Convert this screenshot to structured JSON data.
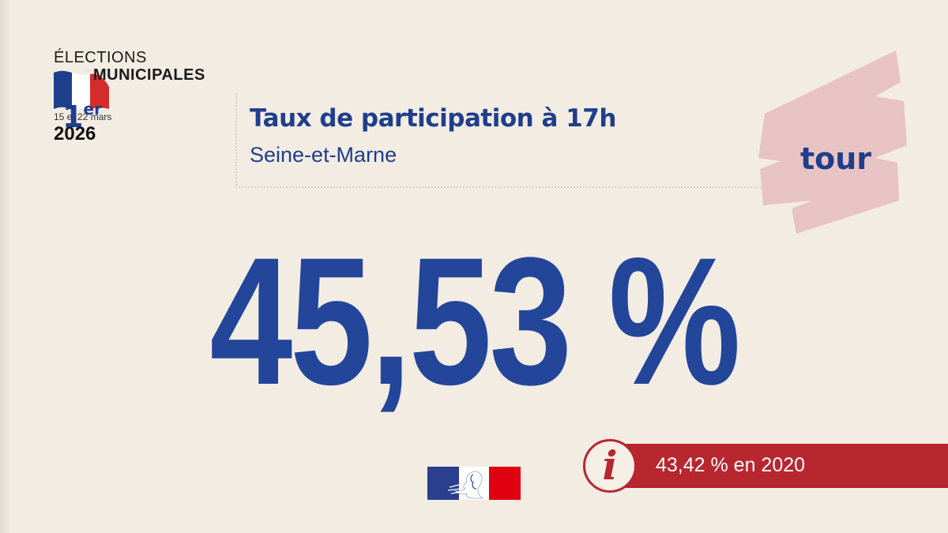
{
  "logo": {
    "line1": "ÉLECTIONS",
    "line2": "MUNICIPALES",
    "dates": "15 et 22 mars",
    "year": "2026",
    "icon": "french-flag-icon"
  },
  "header": {
    "title": "Taux de participation à 17h",
    "subtitle": "Seine-et-Marne"
  },
  "round_badge": {
    "number": "1",
    "suffix": "er",
    "word": "tour"
  },
  "main": {
    "value": "45,53 %"
  },
  "comparison": {
    "text": "43,42 % en 2020",
    "icon": "info-icon"
  },
  "footer": {
    "icon": "marianne-logo-icon"
  },
  "colors": {
    "background": "#f2ece3",
    "primary_blue": "#23469a",
    "accent_red": "#b8262e",
    "badge_pink": "#e8c3c3"
  }
}
